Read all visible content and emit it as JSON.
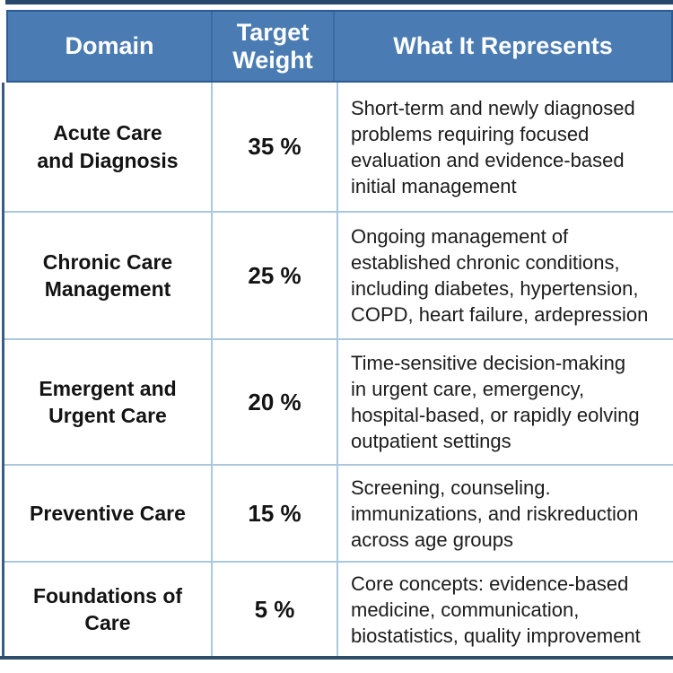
{
  "table": {
    "headers": [
      {
        "label": "Domain"
      },
      {
        "label": [
          "Target",
          "Weight"
        ]
      },
      {
        "label": "What It Represents"
      }
    ],
    "rows": [
      {
        "domain": [
          "Acute Care",
          "and Diagnosis"
        ],
        "weight": "35 %",
        "description": [
          "Short-term and newly diagnosed",
          "problems requiring focused",
          "evaluation and evidence-based",
          "initial management"
        ]
      },
      {
        "domain": [
          "Chronic Care",
          "Management"
        ],
        "weight": "25 %",
        "description": [
          "Ongoing management of",
          "established chronic conditions,",
          "including diabetes, hypertension,",
          "COPD, heart failure, ardepression"
        ]
      },
      {
        "domain": [
          "Emergent and",
          "Urgent Care"
        ],
        "weight": "20 %",
        "description": [
          "Time-sensitive decision-making",
          "in urgent care, emergency,",
          "hospital-based, or rapidly eolving",
          "outpatient settings"
        ]
      },
      {
        "domain": [
          "Preventive Care"
        ],
        "weight": "15 %",
        "description": [
          "Screening, counseling.",
          "immunizations, and riskreduction",
          "across age groups"
        ]
      },
      {
        "domain": [
          "Foundations of",
          "Care"
        ],
        "weight": "5 %",
        "description": [
          "Core concepts: evidence-based",
          "medicine, communication,",
          "biostatistics, quality improvement"
        ]
      }
    ]
  },
  "colors": {
    "header_bg": "#4a7cb3",
    "header_border": "#2b5a92",
    "header_text": "#ffffff",
    "top_rule": "#27476e",
    "bottom_rule": "#2e4d6b",
    "cell_border": "#aac8dd",
    "body_left_border": "#3b5c85",
    "body_text": "#1c1c1c"
  },
  "chart_data": {
    "type": "table",
    "columns": [
      "Domain",
      "Target Weight",
      "What It Represents"
    ],
    "rows": [
      [
        "Acute Care and Diagnosis",
        "35 %",
        "Short-term and newly diagnosed problems requiring focused evaluation and evidence-based initial management"
      ],
      [
        "Chronic Care Management",
        "25 %",
        "Ongoing management of established chronic conditions, including diabetes, hypertension, COPD, heart failure, ardepression"
      ],
      [
        "Emergent and Urgent Care",
        "20 %",
        "Time-sensitive decision-making in urgent care, emergency, hospital-based, or rapidly eolving outpatient settings"
      ],
      [
        "Preventive Care",
        "15 %",
        "Screening, counseling. immunizations, and riskreduction across age groups"
      ],
      [
        "Foundations of Care",
        "5 %",
        "Core concepts: evidence-based medicine, communication, biostatistics, quality improvement"
      ]
    ],
    "weights_numeric": [
      35,
      25,
      20,
      15,
      5
    ]
  }
}
